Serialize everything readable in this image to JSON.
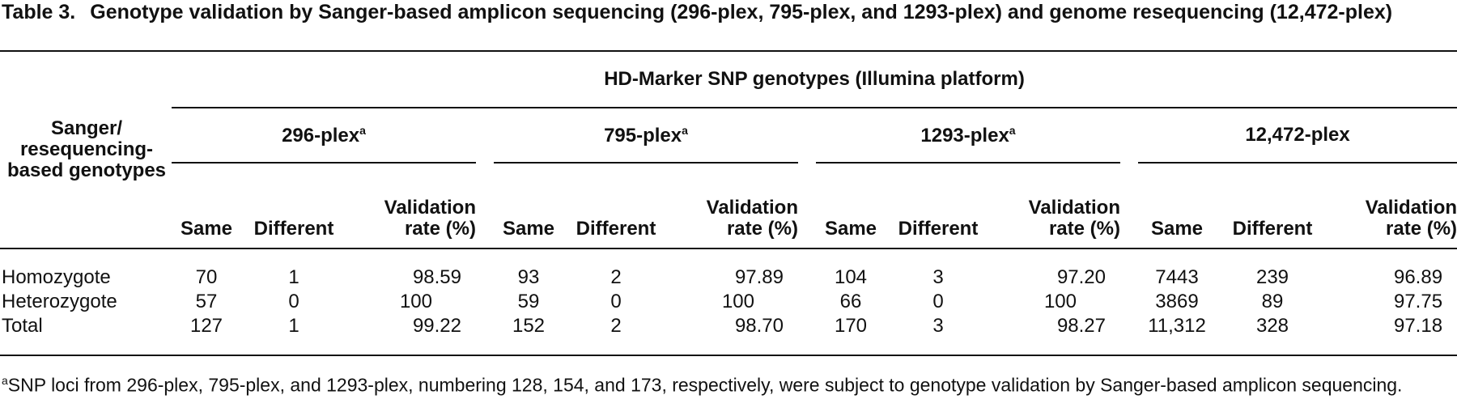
{
  "caption": {
    "label": "Table 3.",
    "text": "Genotype validation by Sanger-based amplicon sequencing (296-plex, 795-plex, and 1293-plex) and genome resequencing (12,472-plex)"
  },
  "table": {
    "row_header": "Sanger/ resequencing-based genotypes",
    "spanner": "HD-Marker SNP genotypes (Illumina platform)",
    "groups": [
      {
        "name": "296-plex",
        "note": "a"
      },
      {
        "name": "795-plex",
        "note": "a"
      },
      {
        "name": "1293-plex",
        "note": "a"
      },
      {
        "name": "12,472-plex"
      }
    ],
    "columns": [
      "Same",
      "Different",
      "Validation rate (%)"
    ],
    "rows": [
      [
        "Homozygote",
        "70",
        "1",
        "98.59",
        "93",
        "2",
        "97.89",
        "104",
        "3",
        "97.20",
        "7443",
        "239",
        "96.89"
      ],
      [
        "Heterozygote",
        "57",
        "0",
        "100",
        "59",
        "0",
        "100",
        "66",
        "0",
        "100",
        "3869",
        "89",
        "97.75"
      ],
      [
        "Total",
        "127",
        "1",
        "99.22",
        "152",
        "2",
        "98.70",
        "170",
        "3",
        "98.27",
        "11,312",
        "328",
        "97.18"
      ]
    ]
  },
  "footnote": {
    "marker": "a",
    "text": "SNP loci from 296-plex, 795-plex, and 1293-plex, numbering 128, 154, and 173, respectively, were subject to genotype validation by Sanger-based amplicon sequencing."
  }
}
